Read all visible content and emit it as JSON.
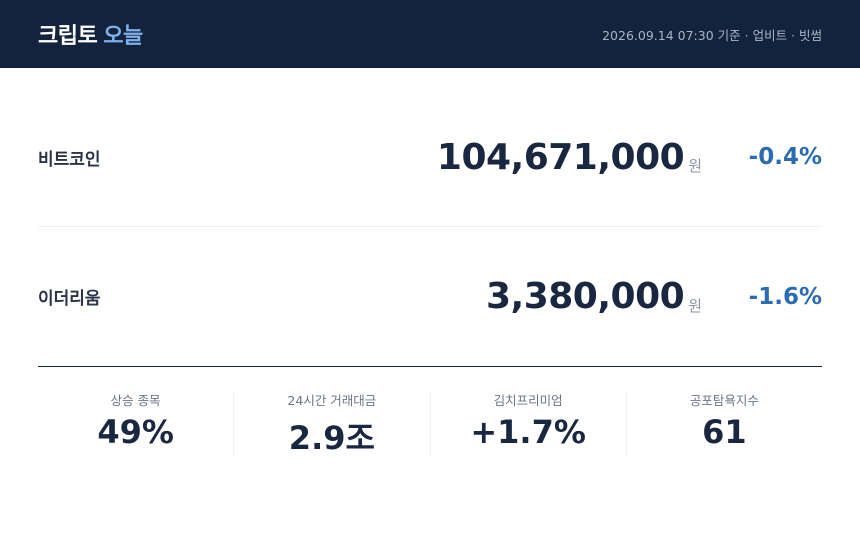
{
  "header": {
    "brand": "크립토",
    "brand_accent": "오늘",
    "meta": "2026.09.14 07:30 기준 · 업비트 · 빗썸"
  },
  "assets": [
    {
      "name": "비트코인",
      "price": "104,671,000",
      "unit": "원",
      "change": "-0.4%"
    },
    {
      "name": "이더리움",
      "price": "3,380,000",
      "unit": "원",
      "change": "-1.6%"
    }
  ],
  "stats": [
    {
      "label": "상승 종목",
      "value": "49%"
    },
    {
      "label": "24시간 거래대금",
      "value": "2.9조"
    },
    {
      "label": "김치프리미엄",
      "value": "+1.7%"
    },
    {
      "label": "공포탐욕지수",
      "value": "61"
    }
  ]
}
